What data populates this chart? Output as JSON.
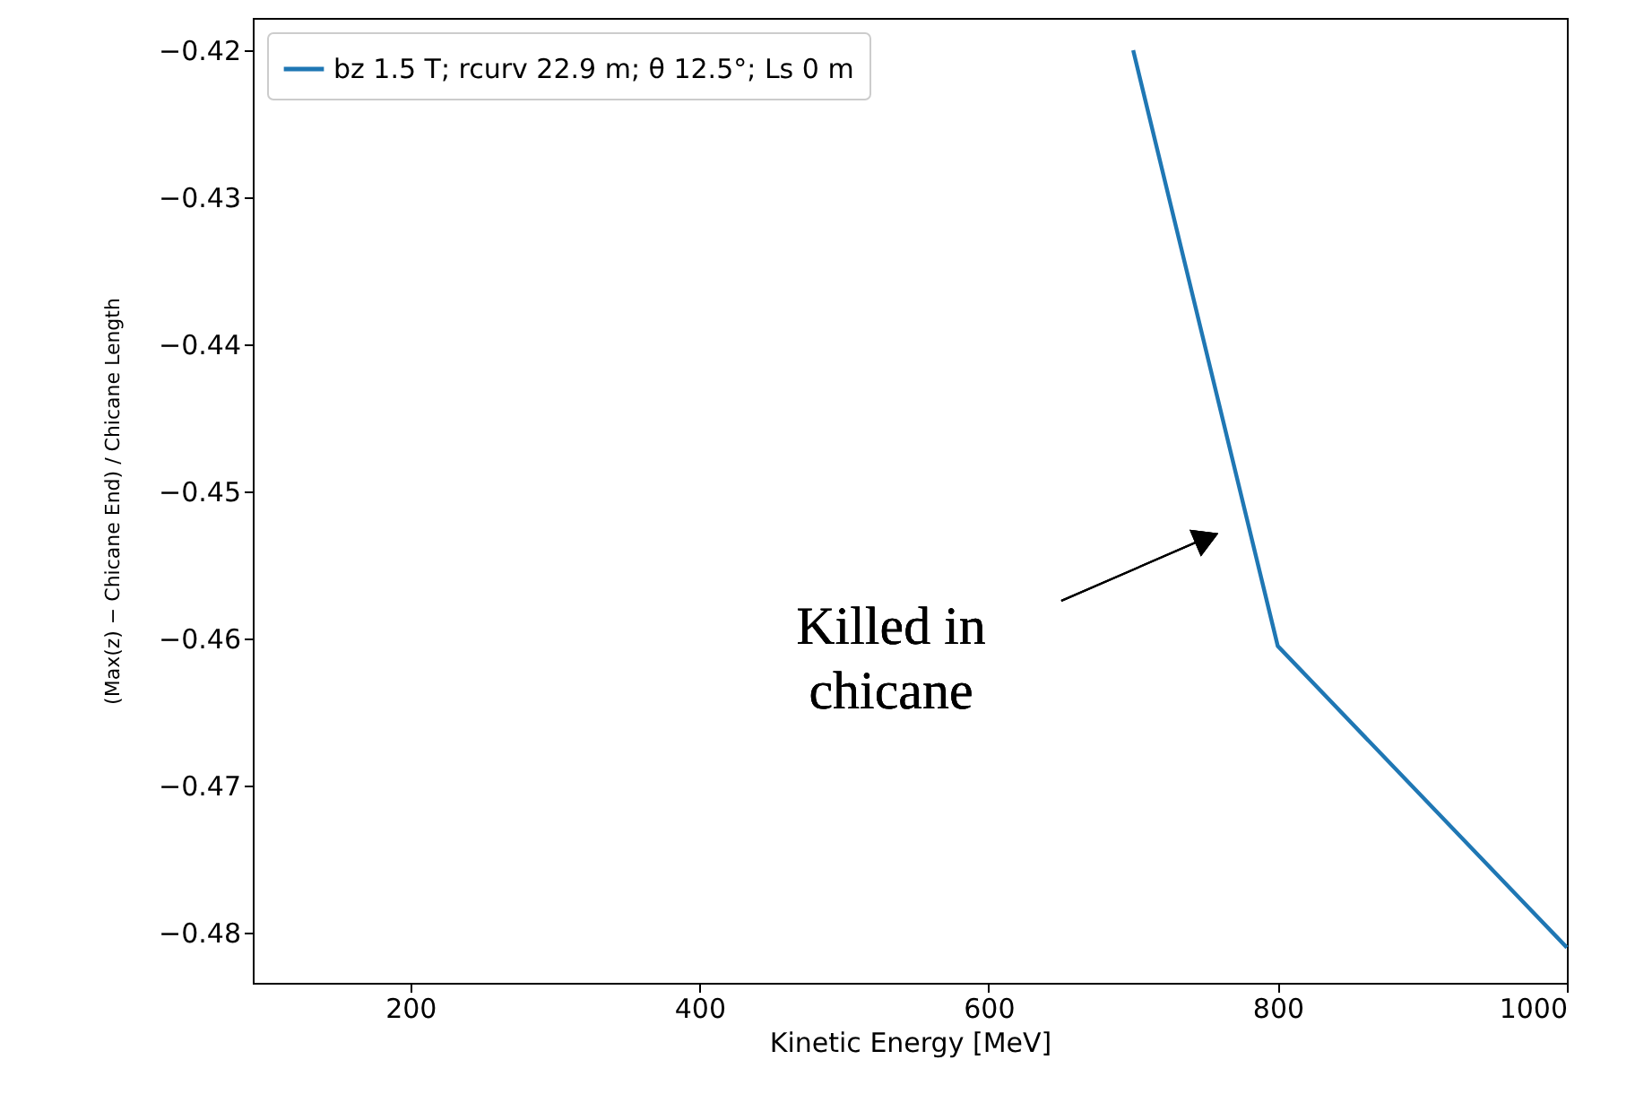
{
  "chart_data": {
    "type": "line",
    "xlabel": "Kinetic Energy [MeV]",
    "ylabel": "(Max(z) − Chicane End) / Chicane Length",
    "x": [
      700,
      800,
      1000
    ],
    "series": [
      {
        "name": "bz 1.5 T; rcurv 22.9 m; θ 12.5°; Ls 0 m",
        "color": "#1f77b4",
        "values": [
          -0.42,
          -0.4605,
          -0.481
        ]
      }
    ],
    "xlim": [
      91,
      1000
    ],
    "xticks": [
      200,
      400,
      600,
      800,
      {
        "value": 1000,
        "label": "1000"
      }
    ],
    "ylim": [
      -0.4834,
      -0.4178
    ],
    "yticks": [
      -0.48,
      -0.47,
      -0.46,
      -0.45,
      -0.44,
      -0.43,
      -0.42
    ],
    "annotations": [
      "Killed in\nchicane"
    ],
    "legend": "top left",
    "grid": false
  }
}
